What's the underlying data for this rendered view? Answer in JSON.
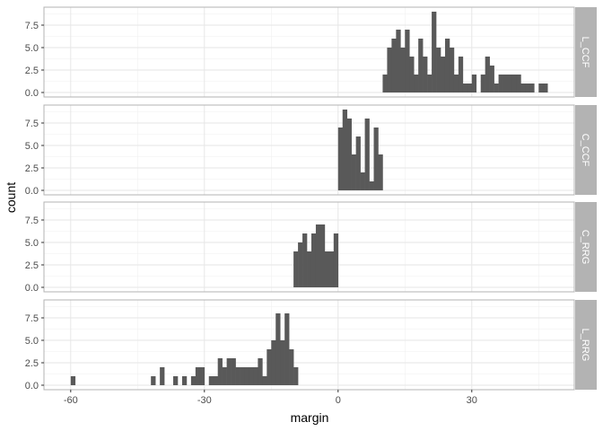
{
  "chart_data": {
    "type": "bar",
    "xlabel": "margin",
    "ylabel": "count",
    "xlim": [
      -66,
      53
    ],
    "ylim": [
      -0.5,
      9.5
    ],
    "x_ticks": [
      -60,
      -30,
      0,
      30
    ],
    "x_tick_labels": [
      "-60",
      "-30",
      "0",
      "30"
    ],
    "y_ticks": [
      0,
      2.5,
      5,
      7.5
    ],
    "y_tick_labels": [
      "0.0",
      "2.5",
      "5.0",
      "7.5"
    ],
    "bin_width": 1,
    "grid": true,
    "facets": [
      {
        "label": "L_CCF",
        "bins": [
          {
            "x": 10,
            "count": 2
          },
          {
            "x": 11,
            "count": 5
          },
          {
            "x": 12,
            "count": 6
          },
          {
            "x": 13,
            "count": 7
          },
          {
            "x": 14,
            "count": 5
          },
          {
            "x": 15,
            "count": 7
          },
          {
            "x": 16,
            "count": 4
          },
          {
            "x": 17,
            "count": 2
          },
          {
            "x": 18,
            "count": 6
          },
          {
            "x": 19,
            "count": 4
          },
          {
            "x": 20,
            "count": 2
          },
          {
            "x": 21,
            "count": 9
          },
          {
            "x": 22,
            "count": 5
          },
          {
            "x": 23,
            "count": 4
          },
          {
            "x": 24,
            "count": 6
          },
          {
            "x": 25,
            "count": 5
          },
          {
            "x": 26,
            "count": 2
          },
          {
            "x": 27,
            "count": 4
          },
          {
            "x": 28,
            "count": 1
          },
          {
            "x": 29,
            "count": 1
          },
          {
            "x": 30,
            "count": 2
          },
          {
            "x": 32,
            "count": 2
          },
          {
            "x": 33,
            "count": 4
          },
          {
            "x": 34,
            "count": 3
          },
          {
            "x": 35,
            "count": 1
          },
          {
            "x": 36,
            "count": 2
          },
          {
            "x": 37,
            "count": 2
          },
          {
            "x": 38,
            "count": 2
          },
          {
            "x": 39,
            "count": 2
          },
          {
            "x": 40,
            "count": 2
          },
          {
            "x": 41,
            "count": 1
          },
          {
            "x": 42,
            "count": 1
          },
          {
            "x": 43,
            "count": 1
          },
          {
            "x": 45,
            "count": 1
          },
          {
            "x": 46,
            "count": 1
          }
        ]
      },
      {
        "label": "C_CCF",
        "bins": [
          {
            "x": 0,
            "count": 7
          },
          {
            "x": 1,
            "count": 9
          },
          {
            "x": 2,
            "count": 8
          },
          {
            "x": 3,
            "count": 4
          },
          {
            "x": 4,
            "count": 6
          },
          {
            "x": 5,
            "count": 2
          },
          {
            "x": 6,
            "count": 8
          },
          {
            "x": 7,
            "count": 1
          },
          {
            "x": 8,
            "count": 7
          },
          {
            "x": 9,
            "count": 4
          }
        ]
      },
      {
        "label": "C_RRG",
        "bins": [
          {
            "x": -10,
            "count": 4
          },
          {
            "x": -9,
            "count": 5
          },
          {
            "x": -8,
            "count": 6
          },
          {
            "x": -7,
            "count": 4
          },
          {
            "x": -6,
            "count": 6
          },
          {
            "x": -5,
            "count": 7
          },
          {
            "x": -4,
            "count": 7
          },
          {
            "x": -3,
            "count": 4
          },
          {
            "x": -2,
            "count": 4
          },
          {
            "x": -1,
            "count": 6
          }
        ]
      },
      {
        "label": "L_RRG",
        "bins": [
          {
            "x": -60,
            "count": 1
          },
          {
            "x": -42,
            "count": 1
          },
          {
            "x": -40,
            "count": 2
          },
          {
            "x": -37,
            "count": 1
          },
          {
            "x": -35,
            "count": 1
          },
          {
            "x": -33,
            "count": 1
          },
          {
            "x": -32,
            "count": 2
          },
          {
            "x": -31,
            "count": 2
          },
          {
            "x": -29,
            "count": 1
          },
          {
            "x": -28,
            "count": 1
          },
          {
            "x": -27,
            "count": 3
          },
          {
            "x": -26,
            "count": 2
          },
          {
            "x": -25,
            "count": 3
          },
          {
            "x": -24,
            "count": 3
          },
          {
            "x": -23,
            "count": 2
          },
          {
            "x": -22,
            "count": 2
          },
          {
            "x": -21,
            "count": 2
          },
          {
            "x": -20,
            "count": 2
          },
          {
            "x": -19,
            "count": 2
          },
          {
            "x": -18,
            "count": 3
          },
          {
            "x": -17,
            "count": 1
          },
          {
            "x": -16,
            "count": 4
          },
          {
            "x": -15,
            "count": 5
          },
          {
            "x": -14,
            "count": 8
          },
          {
            "x": -13,
            "count": 5
          },
          {
            "x": -12,
            "count": 8
          },
          {
            "x": -11,
            "count": 4
          },
          {
            "x": -10,
            "count": 2
          }
        ]
      }
    ]
  }
}
